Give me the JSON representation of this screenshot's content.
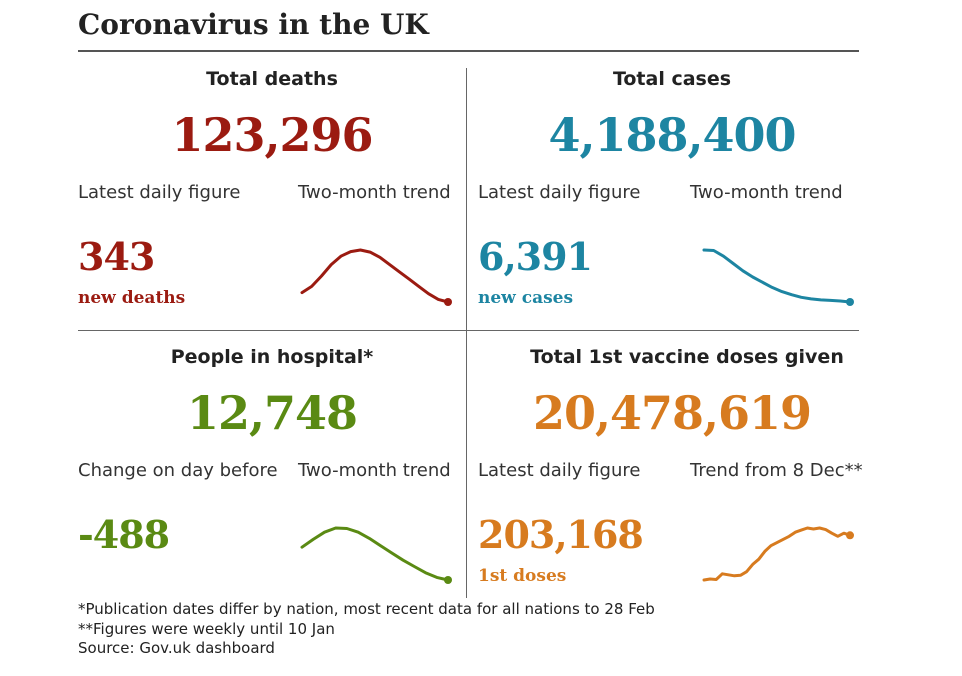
{
  "title": "Coronavirus in the UK",
  "panels": {
    "deaths": {
      "heading": "Total deaths",
      "total": "123,296",
      "left_label": "Latest daily figure",
      "right_label": "Two-month trend",
      "daily_value": "343",
      "daily_caption": "new deaths",
      "color": "#9b1b11"
    },
    "cases": {
      "heading": "Total cases",
      "total": "4,188,400",
      "left_label": "Latest daily figure",
      "right_label": "Two-month trend",
      "daily_value": "6,391",
      "daily_caption": "new cases",
      "color": "#1d85a2"
    },
    "hospital": {
      "heading": "People in hospital*",
      "total": "12,748",
      "left_label": "Change on day before",
      "right_label": "Two-month trend",
      "daily_value": "-488",
      "daily_caption": "",
      "color": "#5a8a13"
    },
    "vaccine": {
      "heading": "Total 1st vaccine doses given",
      "total": "20,478,619",
      "left_label": "Latest daily figure",
      "right_label": "Trend from 8 Dec**",
      "daily_value": "203,168",
      "daily_caption": "1st doses",
      "color": "#d77b1f"
    }
  },
  "footnotes": [
    "*Publication dates differ by nation, most recent data for all nations to 28 Feb",
    "**Figures were weekly until 10 Jan",
    "Source: Gov.uk dashboard"
  ],
  "chart_data": [
    {
      "type": "line",
      "name": "deaths",
      "title": "Two-month trend",
      "values": [
        0.18,
        0.3,
        0.5,
        0.72,
        0.88,
        0.97,
        1.0,
        0.96,
        0.86,
        0.72,
        0.58,
        0.44,
        0.3,
        0.16,
        0.05,
        0.0
      ],
      "ylim": [
        0,
        1
      ]
    },
    {
      "type": "line",
      "name": "cases",
      "title": "Two-month trend",
      "values": [
        1.0,
        0.99,
        0.88,
        0.74,
        0.6,
        0.48,
        0.38,
        0.28,
        0.2,
        0.14,
        0.09,
        0.06,
        0.04,
        0.03,
        0.02,
        0.0
      ],
      "ylim": [
        0,
        1
      ]
    },
    {
      "type": "line",
      "name": "hospital",
      "title": "Two-month trend",
      "values": [
        0.63,
        0.78,
        0.92,
        1.0,
        0.99,
        0.92,
        0.8,
        0.66,
        0.52,
        0.38,
        0.26,
        0.14,
        0.05,
        0.0
      ],
      "ylim": [
        0,
        1
      ]
    },
    {
      "type": "line",
      "name": "vaccine",
      "title": "Trend from 8 Dec**",
      "values": [
        0.0,
        0.02,
        0.01,
        0.12,
        0.1,
        0.08,
        0.09,
        0.16,
        0.3,
        0.4,
        0.55,
        0.66,
        0.72,
        0.78,
        0.84,
        0.92,
        0.96,
        1.0,
        0.98,
        1.0,
        0.97,
        0.9,
        0.84,
        0.9,
        0.86
      ],
      "ylim": [
        0,
        1
      ]
    }
  ]
}
